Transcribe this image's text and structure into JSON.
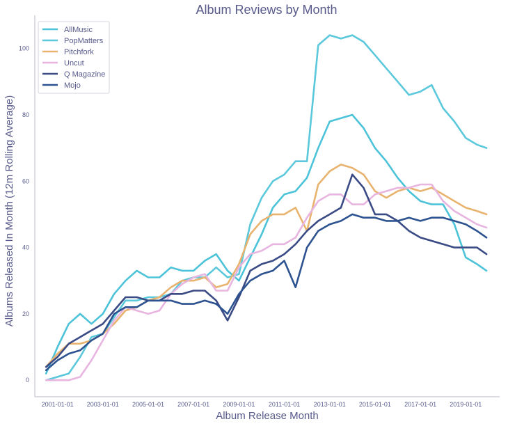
{
  "chart_data": {
    "type": "line",
    "title": "Album Reviews by Month",
    "xlabel": "Album Release Month",
    "ylabel": "Albums Released In Month (12m Rolling Average)",
    "x_ticks": [
      "2001-01-01",
      "2003-01-01",
      "2005-01-01",
      "2007-01-01",
      "2009-01-01",
      "2011-01-01",
      "2013-01-01",
      "2015-01-01",
      "2017-01-01",
      "2019-01-01"
    ],
    "y_ticks": [
      0,
      20,
      40,
      60,
      80,
      100
    ],
    "xlim": [
      "2000-01-01",
      "2020-06-30"
    ],
    "ylim": [
      -5,
      110
    ],
    "grid": false,
    "legend_position": "top-left",
    "x": [
      "2000-07-01",
      "2001-01-01",
      "2001-07-01",
      "2002-01-01",
      "2002-07-01",
      "2003-01-01",
      "2003-07-01",
      "2004-01-01",
      "2004-07-01",
      "2005-01-01",
      "2005-07-01",
      "2006-01-01",
      "2006-07-01",
      "2007-01-01",
      "2007-07-01",
      "2008-01-01",
      "2008-07-01",
      "2009-01-01",
      "2009-07-01",
      "2010-01-01",
      "2010-07-01",
      "2011-01-01",
      "2011-07-01",
      "2012-01-01",
      "2012-07-01",
      "2013-01-01",
      "2013-07-01",
      "2014-01-01",
      "2014-07-01",
      "2015-01-01",
      "2015-07-01",
      "2016-01-01",
      "2016-07-01",
      "2017-01-01",
      "2017-07-01",
      "2018-01-01",
      "2018-07-01",
      "2019-01-01",
      "2019-07-01",
      "2019-12-01"
    ],
    "series": [
      {
        "name": "AllMusic",
        "color": "#4cc3d9",
        "values": [
          2,
          10,
          17,
          20,
          17,
          20,
          26,
          30,
          33,
          31,
          31,
          34,
          33,
          33,
          36,
          38,
          33,
          30,
          37,
          44,
          52,
          56,
          57,
          61,
          70,
          78,
          79,
          80,
          76,
          70,
          66,
          61,
          57,
          54,
          53,
          53,
          47,
          37,
          35,
          33
        ]
      },
      {
        "name": "PopMatters",
        "color": "#5bc8dc",
        "values": [
          0,
          1,
          2,
          7,
          13,
          14,
          19,
          24,
          24,
          25,
          25,
          26,
          30,
          31,
          31,
          34,
          31,
          32,
          47,
          55,
          60,
          62,
          66,
          66,
          101,
          104,
          103,
          104,
          102,
          98,
          94,
          90,
          86,
          87,
          89,
          82,
          78,
          73,
          71,
          70
        ]
      },
      {
        "name": "Pitchfork",
        "color": "#e8b36f",
        "values": [
          4,
          8,
          11,
          11,
          12,
          14,
          17,
          21,
          22,
          24,
          25,
          28,
          30,
          30,
          31,
          28,
          29,
          35,
          44,
          48,
          50,
          50,
          52,
          45,
          59,
          63,
          65,
          64,
          62,
          57,
          55,
          57,
          58,
          57,
          58,
          56,
          54,
          52,
          51,
          50
        ]
      },
      {
        "name": "Uncut",
        "color": "#e7b5df",
        "values": [
          0,
          0,
          0,
          1,
          6,
          12,
          18,
          22,
          21,
          20,
          21,
          26,
          29,
          31,
          32,
          27,
          27,
          34,
          38,
          39,
          41,
          41,
          43,
          49,
          54,
          56,
          56,
          53,
          53,
          56,
          57,
          58,
          58,
          59,
          59,
          54,
          51,
          49,
          47,
          46
        ]
      },
      {
        "name": "Q Magazine",
        "color": "#3a4a85",
        "values": [
          4,
          7,
          11,
          13,
          15,
          17,
          21,
          25,
          25,
          24,
          24,
          26,
          26,
          27,
          27,
          24,
          18,
          25,
          33,
          35,
          36,
          38,
          41,
          45,
          48,
          50,
          52,
          62,
          58,
          50,
          50,
          48,
          45,
          43,
          42,
          41,
          40,
          40,
          40,
          38
        ]
      },
      {
        "name": "Mojo",
        "color": "#2d5290",
        "values": [
          3,
          6,
          8,
          9,
          12,
          14,
          20,
          22,
          22,
          24,
          24,
          24,
          23,
          23,
          24,
          23,
          20,
          26,
          30,
          32,
          33,
          36,
          28,
          40,
          45,
          47,
          48,
          50,
          49,
          49,
          48,
          48,
          49,
          48,
          49,
          49,
          48,
          47,
          45,
          43
        ]
      }
    ]
  }
}
